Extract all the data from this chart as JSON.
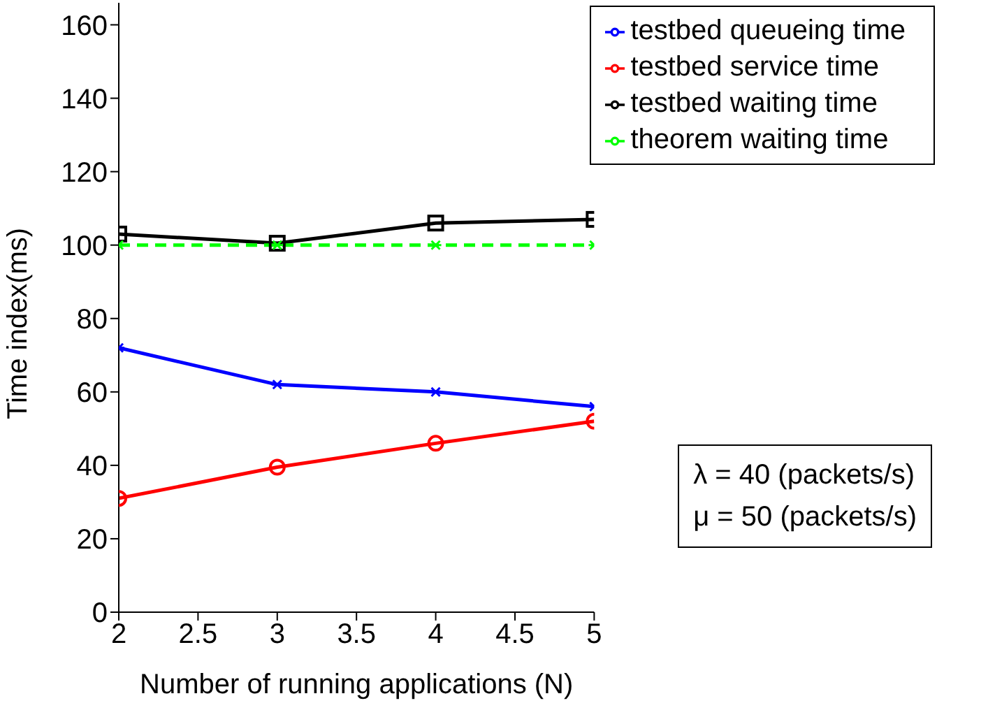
{
  "chart_data": {
    "type": "line",
    "xlabel": "Number of running applications (N)",
    "ylabel": "Time index(ms)",
    "x": [
      2,
      3,
      4,
      5
    ],
    "series": [
      {
        "name": "testbed service time",
        "color": "#ff0000",
        "values": [
          31,
          39.5,
          46,
          52
        ],
        "marker": "circle"
      },
      {
        "name": "testbed queueing time",
        "color": "#0000ff",
        "values": [
          72,
          62,
          60,
          56
        ],
        "marker": "cross"
      },
      {
        "name": "testbed waiting time",
        "color": "#000000",
        "values": [
          103,
          100.5,
          106,
          107
        ],
        "marker": "square"
      },
      {
        "name": "theorem waiting time",
        "color": "#00ff00",
        "values": [
          100,
          100,
          100,
          100
        ],
        "marker": "cross",
        "line_style": "dashed"
      }
    ],
    "xlim": [
      2,
      5
    ],
    "xticks": [
      2,
      2.5,
      3,
      3.5,
      4,
      4.5,
      5
    ],
    "ylim": [
      0,
      166
    ],
    "yticks": [
      0,
      20,
      40,
      60,
      80,
      100,
      120,
      140,
      160
    ],
    "grid": false,
    "legend": "top right",
    "annotations": [
      "λ = 40 (packets/s)",
      "μ = 50 (packets/s)"
    ]
  }
}
